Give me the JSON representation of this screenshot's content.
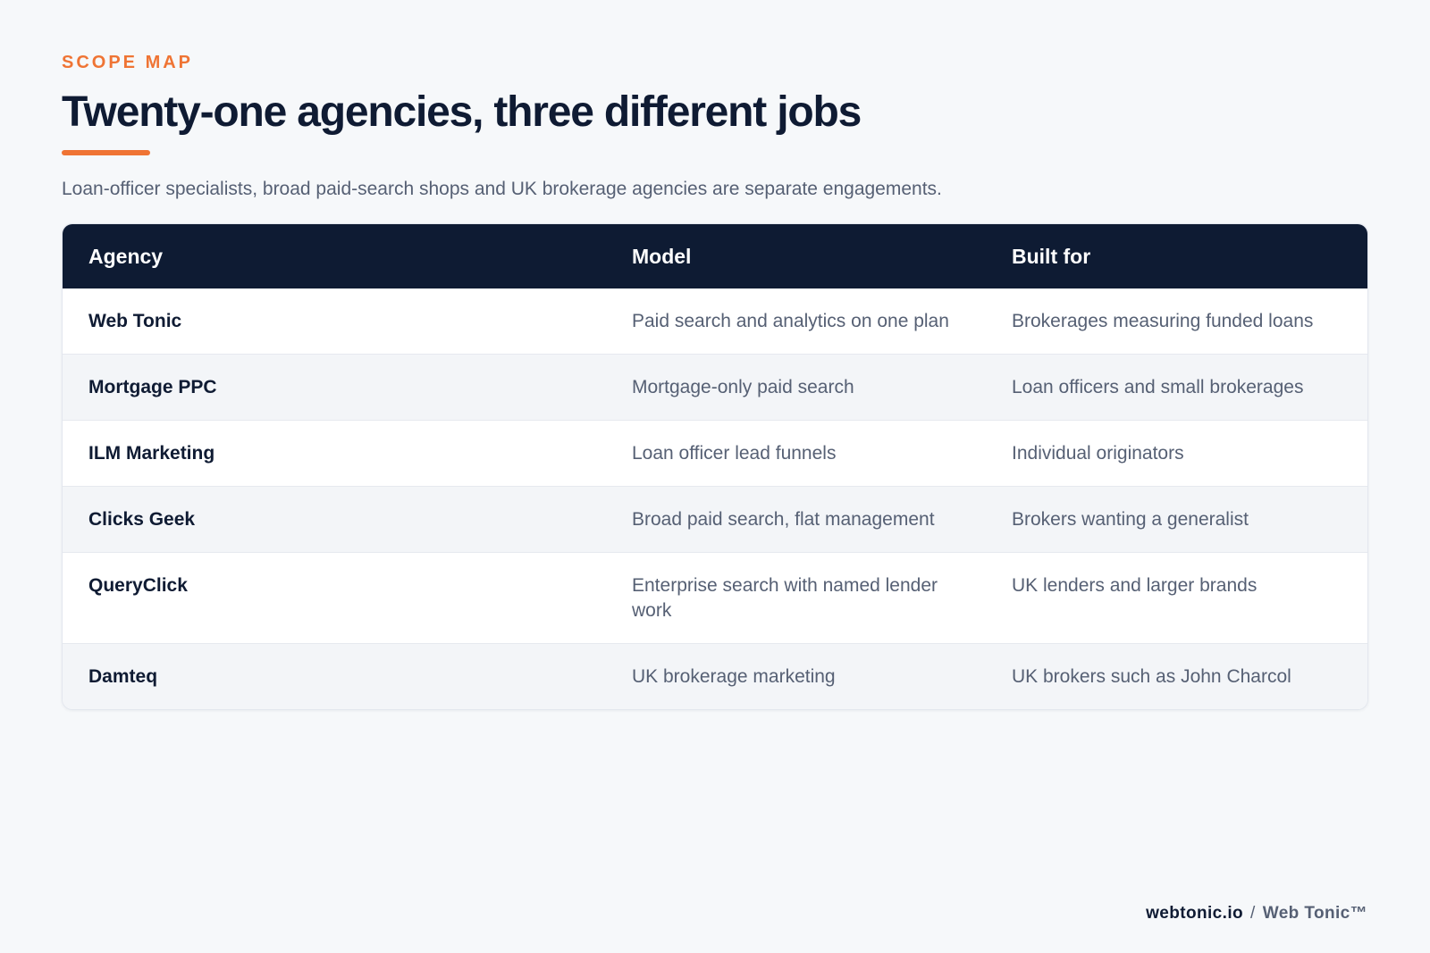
{
  "header": {
    "eyebrow": "SCOPE MAP",
    "title": "Twenty-one agencies, three different jobs",
    "subtitle": "Loan-officer specialists, broad paid-search shops and UK brokerage agencies are separate engagements."
  },
  "table": {
    "columns": [
      "Agency",
      "Model",
      "Built for"
    ],
    "rows": [
      {
        "agency": "Web Tonic",
        "model": "Paid search and analytics on one plan",
        "built_for": "Brokerages measuring funded loans"
      },
      {
        "agency": "Mortgage PPC",
        "model": "Mortgage-only paid search",
        "built_for": "Loan officers and small brokerages"
      },
      {
        "agency": "ILM Marketing",
        "model": "Loan officer lead funnels",
        "built_for": "Individual originators"
      },
      {
        "agency": "Clicks Geek",
        "model": "Broad paid search, flat management",
        "built_for": "Brokers wanting a generalist"
      },
      {
        "agency": "QueryClick",
        "model": "Enterprise search with named lender work",
        "built_for": "UK lenders and larger brands"
      },
      {
        "agency": "Damteq",
        "model": "UK brokerage marketing",
        "built_for": "UK brokers such as John Charcol"
      }
    ]
  },
  "footer": {
    "domain": "webtonic.io",
    "separator": "/",
    "brand": "Web Tonic™"
  },
  "colors": {
    "accent": "#ef7434",
    "navy": "#0e1b33",
    "muted_text": "#566074",
    "background": "#f6f8fa"
  }
}
